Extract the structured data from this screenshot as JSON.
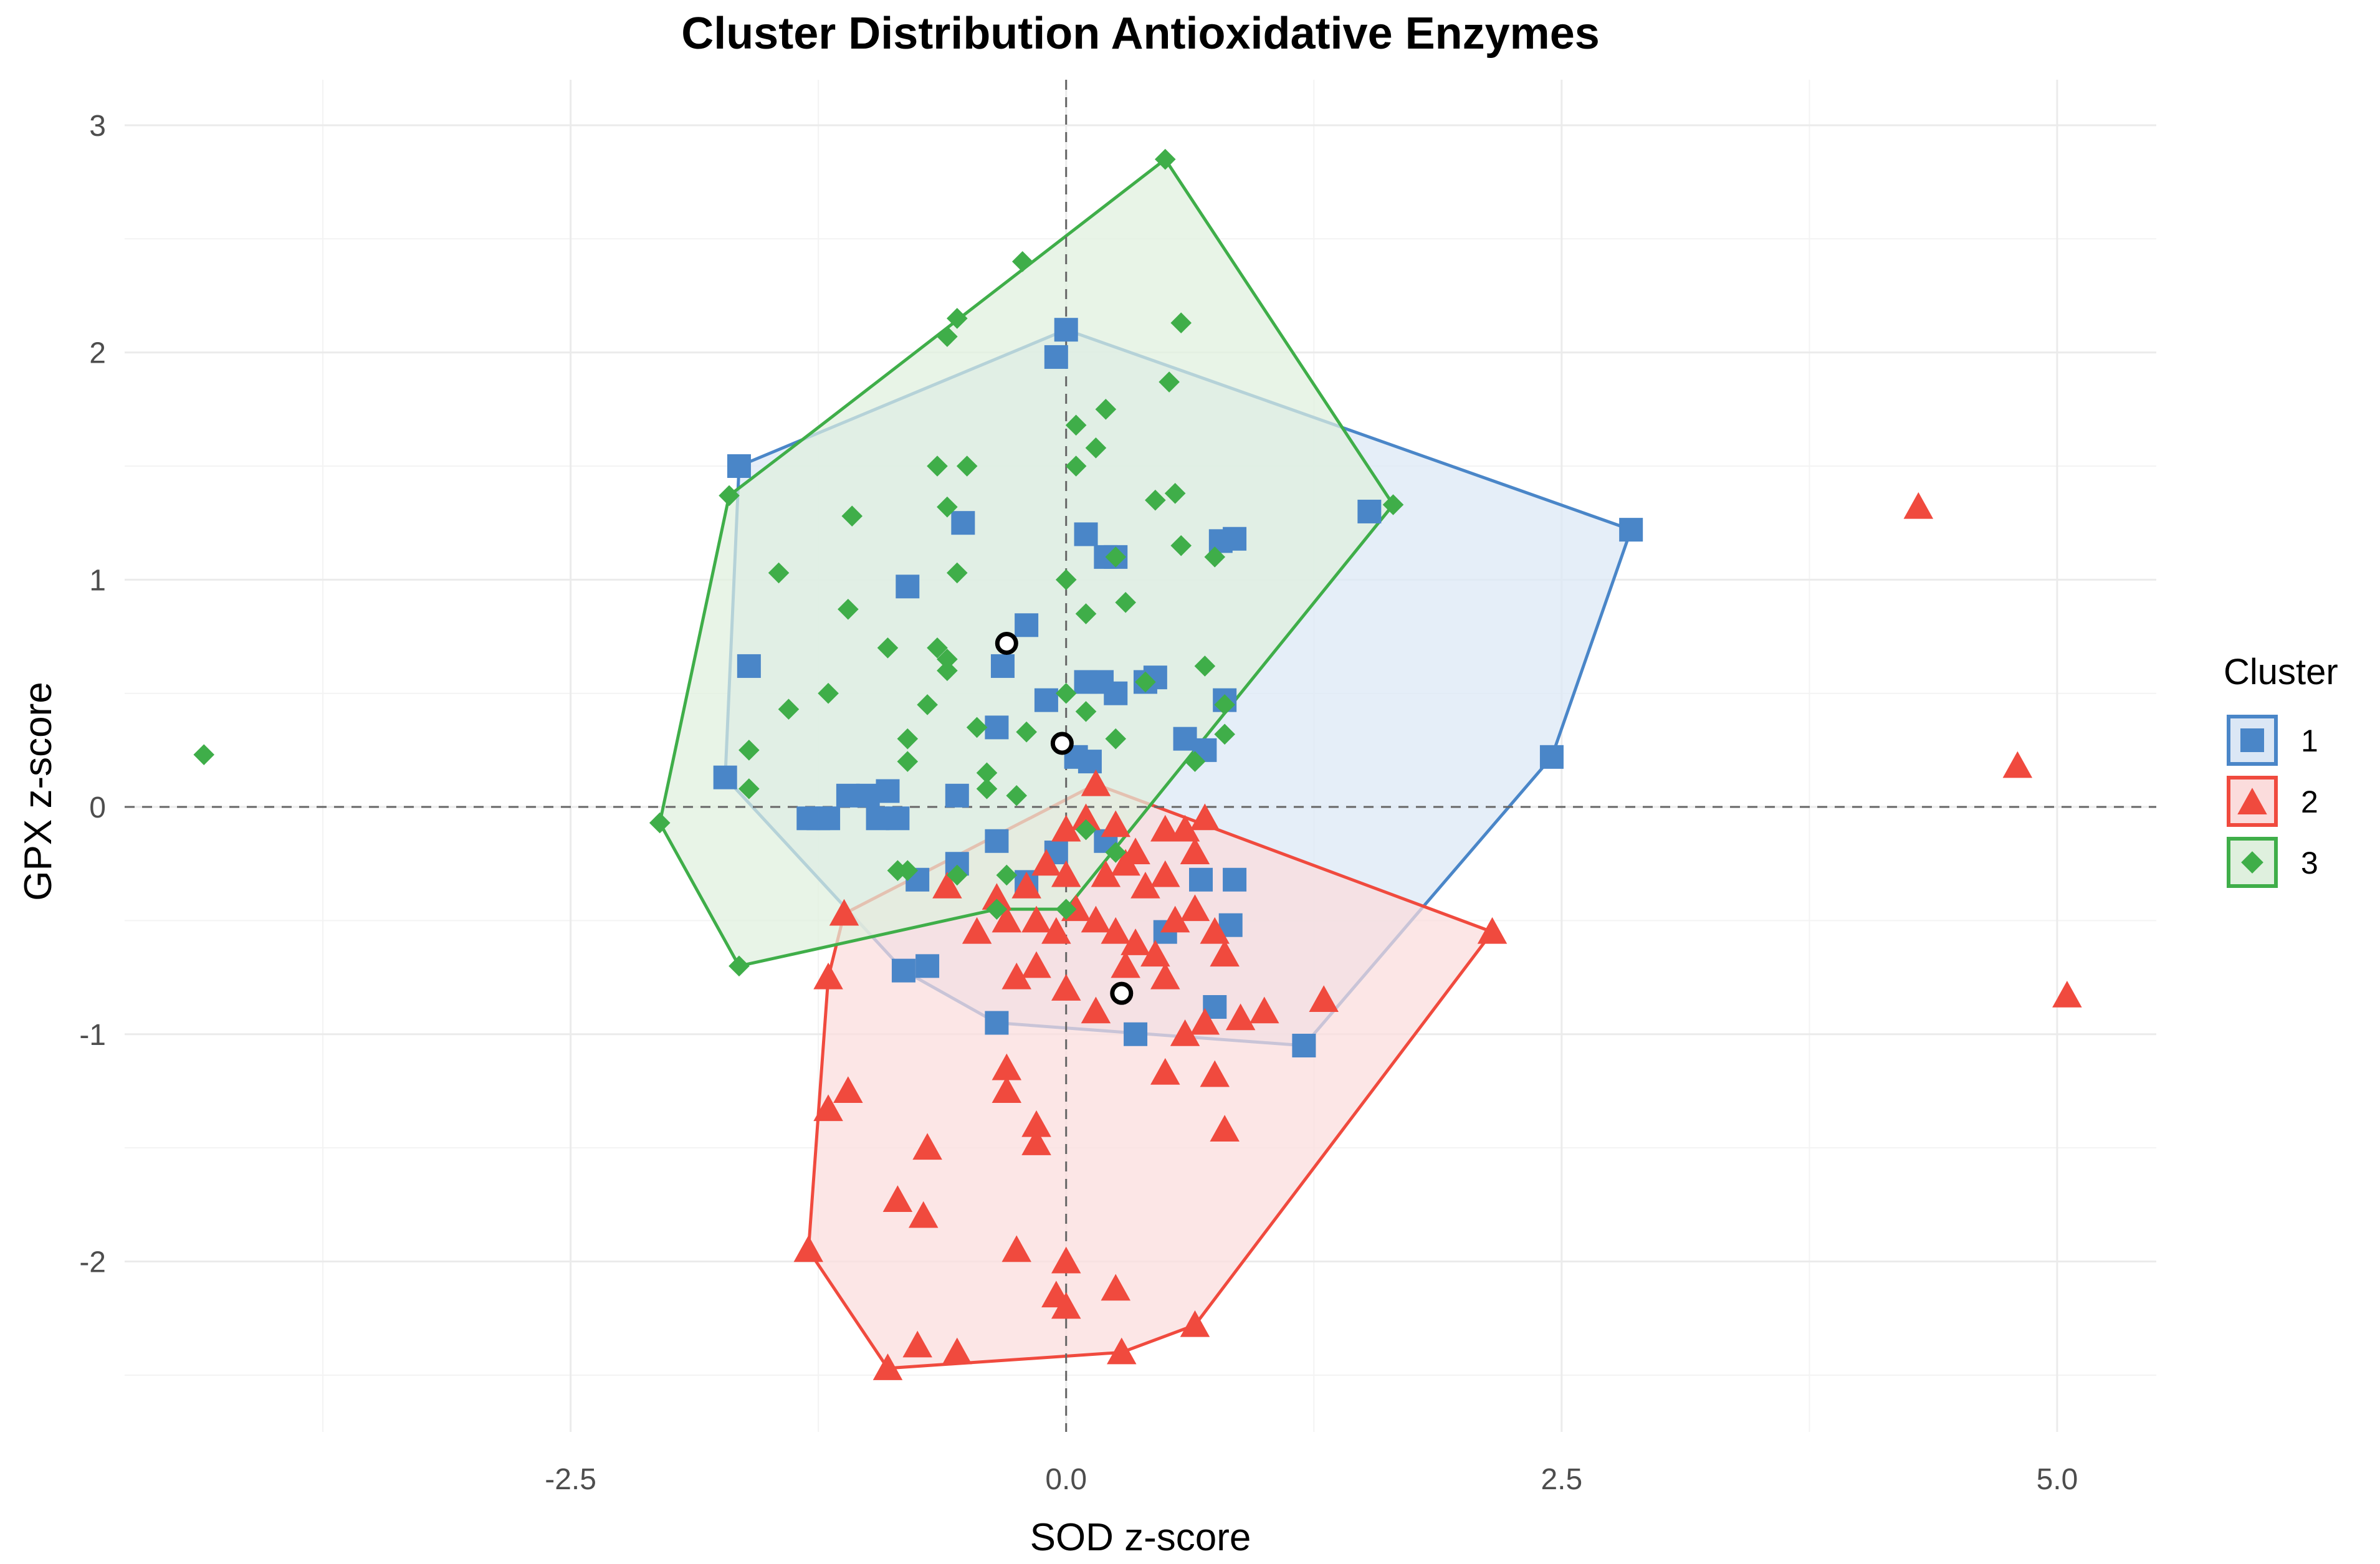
{
  "chart_data": {
    "type": "scatter",
    "title": "Cluster Distribution Antioxidative Enzymes",
    "xlabel": "SOD z-score",
    "ylabel": "GPX z-score",
    "xlim": [
      -4.75,
      5.5
    ],
    "ylim": [
      -2.75,
      3.2
    ],
    "xticks": [
      -2.5,
      0.0,
      2.5,
      5.0
    ],
    "xtick_labels": [
      "-2.5",
      "0.0",
      "2.5",
      "5.0"
    ],
    "yticks": [
      -2,
      -1,
      0,
      1,
      2,
      3
    ],
    "ytick_labels": [
      "-2",
      "-1",
      "0",
      "1",
      "2",
      "3"
    ],
    "grid": true,
    "reference_lines": {
      "x": 0,
      "y": 0,
      "style": "dashed"
    },
    "legend": {
      "title": "Cluster",
      "position": "right",
      "entries": [
        {
          "label": "1",
          "color": "#4a86c8",
          "fill": "#dbe7f5",
          "marker": "square"
        },
        {
          "label": "2",
          "color": "#f04a3e",
          "fill": "#fbdcdc",
          "marker": "triangle"
        },
        {
          "label": "3",
          "color": "#3fae49",
          "fill": "#dff0de",
          "marker": "diamond"
        }
      ]
    },
    "series": [
      {
        "name": "1",
        "marker": "square",
        "color": "#4a86c8",
        "hull": [
          [
            -1.65,
            1.5
          ],
          [
            0.0,
            2.1
          ],
          [
            2.85,
            1.22
          ],
          [
            2.45,
            0.22
          ],
          [
            1.2,
            -1.05
          ],
          [
            -0.35,
            -0.95
          ],
          [
            -0.82,
            -0.72
          ],
          [
            -1.72,
            0.13
          ]
        ],
        "points": [
          [
            -1.65,
            1.5
          ],
          [
            0.0,
            2.1
          ],
          [
            -0.05,
            1.98
          ],
          [
            2.85,
            1.22
          ],
          [
            1.53,
            1.3
          ],
          [
            2.45,
            0.22
          ],
          [
            1.2,
            -1.05
          ],
          [
            -0.35,
            -0.95
          ],
          [
            -0.82,
            -0.72
          ],
          [
            -1.72,
            0.13
          ],
          [
            -1.6,
            0.62
          ],
          [
            -0.52,
            1.25
          ],
          [
            -0.8,
            0.97
          ],
          [
            0.1,
            1.2
          ],
          [
            0.2,
            1.1
          ],
          [
            0.25,
            1.1
          ],
          [
            0.78,
            1.17
          ],
          [
            0.85,
            1.18
          ],
          [
            -0.2,
            0.8
          ],
          [
            -0.32,
            0.62
          ],
          [
            0.1,
            0.55
          ],
          [
            0.18,
            0.55
          ],
          [
            0.25,
            0.5
          ],
          [
            0.4,
            0.55
          ],
          [
            0.45,
            0.57
          ],
          [
            -0.1,
            0.47
          ],
          [
            -0.35,
            0.35
          ],
          [
            0.8,
            0.47
          ],
          [
            0.6,
            0.3
          ],
          [
            0.7,
            0.25
          ],
          [
            0.05,
            0.22
          ],
          [
            -1.3,
            -0.05
          ],
          [
            -1.25,
            -0.05
          ],
          [
            -1.2,
            -0.05
          ],
          [
            -1.1,
            0.05
          ],
          [
            -1.0,
            0.05
          ],
          [
            -0.95,
            -0.05
          ],
          [
            -0.9,
            0.07
          ],
          [
            -0.85,
            -0.05
          ],
          [
            -0.75,
            -0.32
          ],
          [
            -0.55,
            0.05
          ],
          [
            -0.55,
            -0.25
          ],
          [
            -0.35,
            -0.15
          ],
          [
            -0.2,
            -0.33
          ],
          [
            -0.05,
            -0.2
          ],
          [
            0.12,
            0.2
          ],
          [
            -0.7,
            -0.7
          ],
          [
            0.5,
            -0.55
          ],
          [
            0.68,
            -0.32
          ],
          [
            0.85,
            -0.32
          ],
          [
            0.83,
            -0.52
          ],
          [
            0.75,
            -0.88
          ],
          [
            0.35,
            -1.0
          ],
          [
            0.2,
            -0.15
          ]
        ]
      },
      {
        "name": "2",
        "marker": "triangle",
        "color": "#f04a3e",
        "hull": [
          [
            0.15,
            0.1
          ],
          [
            2.15,
            -0.55
          ],
          [
            0.65,
            -2.28
          ],
          [
            0.28,
            -2.4
          ],
          [
            -0.9,
            -2.47
          ],
          [
            -1.3,
            -1.95
          ],
          [
            -1.2,
            -0.75
          ],
          [
            -1.12,
            -0.47
          ]
        ],
        "points": [
          [
            4.3,
            1.32
          ],
          [
            4.8,
            0.18
          ],
          [
            5.05,
            -0.83
          ],
          [
            2.15,
            -0.55
          ],
          [
            0.15,
            0.1
          ],
          [
            0.25,
            -0.08
          ],
          [
            0.35,
            -0.2
          ],
          [
            0.5,
            -0.1
          ],
          [
            0.6,
            -0.1
          ],
          [
            0.65,
            -0.2
          ],
          [
            0.7,
            -0.05
          ],
          [
            0.5,
            -0.3
          ],
          [
            0.4,
            -0.35
          ],
          [
            0.3,
            -0.25
          ],
          [
            0.2,
            -0.3
          ],
          [
            0.1,
            -0.05
          ],
          [
            0.0,
            -0.1
          ],
          [
            -0.1,
            -0.25
          ],
          [
            -0.2,
            -0.35
          ],
          [
            -0.3,
            -0.5
          ],
          [
            -0.35,
            -0.4
          ],
          [
            -0.15,
            -0.5
          ],
          [
            -0.05,
            -0.55
          ],
          [
            0.05,
            -0.45
          ],
          [
            0.15,
            -0.5
          ],
          [
            0.25,
            -0.55
          ],
          [
            0.35,
            -0.6
          ],
          [
            0.45,
            -0.65
          ],
          [
            0.55,
            -0.5
          ],
          [
            0.65,
            -0.45
          ],
          [
            0.75,
            -0.55
          ],
          [
            0.8,
            -0.65
          ],
          [
            1.0,
            -0.9
          ],
          [
            1.3,
            -0.85
          ],
          [
            0.7,
            -0.95
          ],
          [
            0.6,
            -1.0
          ],
          [
            0.5,
            -0.75
          ],
          [
            0.3,
            -0.7
          ],
          [
            0.15,
            -0.9
          ],
          [
            0.0,
            -0.8
          ],
          [
            -0.15,
            -0.7
          ],
          [
            -0.25,
            -0.75
          ],
          [
            -0.3,
            -1.15
          ],
          [
            -0.3,
            -1.25
          ],
          [
            -0.15,
            -1.4
          ],
          [
            -0.15,
            -1.48
          ],
          [
            -0.7,
            -1.5
          ],
          [
            -1.1,
            -1.25
          ],
          [
            -1.2,
            -1.33
          ],
          [
            -1.2,
            -0.75
          ],
          [
            -1.12,
            -0.47
          ],
          [
            -0.85,
            -1.73
          ],
          [
            -0.72,
            -1.8
          ],
          [
            -1.3,
            -1.95
          ],
          [
            -0.25,
            -1.95
          ],
          [
            0.25,
            -2.12
          ],
          [
            -0.05,
            -2.15
          ],
          [
            0.0,
            -2.2
          ],
          [
            -0.9,
            -2.47
          ],
          [
            -0.75,
            -2.37
          ],
          [
            -0.55,
            -2.4
          ],
          [
            0.28,
            -2.4
          ],
          [
            0.65,
            -2.28
          ],
          [
            0.5,
            -1.17
          ],
          [
            0.75,
            -1.18
          ],
          [
            0.8,
            -1.42
          ],
          [
            0.88,
            -0.93
          ],
          [
            0.0,
            -2.0
          ],
          [
            -0.6,
            -0.35
          ],
          [
            -0.45,
            -0.55
          ],
          [
            0.0,
            -0.3
          ]
        ]
      },
      {
        "name": "3",
        "marker": "diamond",
        "color": "#3fae49",
        "hull": [
          [
            0.5,
            2.85
          ],
          [
            1.65,
            1.33
          ],
          [
            0.0,
            -0.45
          ],
          [
            -0.35,
            -0.45
          ],
          [
            -1.65,
            -0.7
          ],
          [
            -2.05,
            -0.07
          ],
          [
            -1.7,
            1.37
          ],
          [
            -1.28,
            1.65
          ]
        ],
        "points": [
          [
            -4.35,
            0.23
          ],
          [
            0.5,
            2.85
          ],
          [
            -0.22,
            2.4
          ],
          [
            0.58,
            2.13
          ],
          [
            -0.55,
            2.15
          ],
          [
            -0.6,
            2.07
          ],
          [
            0.52,
            1.87
          ],
          [
            0.2,
            1.75
          ],
          [
            0.05,
            1.68
          ],
          [
            0.15,
            1.58
          ],
          [
            0.05,
            1.5
          ],
          [
            -0.65,
            1.5
          ],
          [
            -0.5,
            1.5
          ],
          [
            0.45,
            1.35
          ],
          [
            0.55,
            1.38
          ],
          [
            -1.7,
            1.37
          ],
          [
            -0.6,
            1.32
          ],
          [
            1.65,
            1.33
          ],
          [
            -1.08,
            1.28
          ],
          [
            0.25,
            1.1
          ],
          [
            0.58,
            1.15
          ],
          [
            0.75,
            1.1
          ],
          [
            -0.55,
            1.03
          ],
          [
            -1.45,
            1.03
          ],
          [
            0.0,
            1.0
          ],
          [
            0.3,
            0.9
          ],
          [
            0.1,
            0.85
          ],
          [
            -1.1,
            0.87
          ],
          [
            -0.65,
            0.7
          ],
          [
            -0.9,
            0.7
          ],
          [
            -0.6,
            0.65
          ],
          [
            -0.6,
            0.6
          ],
          [
            0.7,
            0.62
          ],
          [
            0.4,
            0.55
          ],
          [
            -1.2,
            0.5
          ],
          [
            0.0,
            0.5
          ],
          [
            0.1,
            0.42
          ],
          [
            -1.4,
            0.43
          ],
          [
            0.8,
            0.45
          ],
          [
            -0.7,
            0.45
          ],
          [
            -0.45,
            0.35
          ],
          [
            -0.2,
            0.33
          ],
          [
            0.25,
            0.3
          ],
          [
            0.8,
            0.32
          ],
          [
            -0.8,
            0.3
          ],
          [
            0.65,
            0.2
          ],
          [
            -0.8,
            0.2
          ],
          [
            -0.4,
            0.15
          ],
          [
            -0.4,
            0.08
          ],
          [
            -1.6,
            0.25
          ],
          [
            -1.6,
            0.08
          ],
          [
            -2.05,
            -0.07
          ],
          [
            -1.65,
            -0.7
          ],
          [
            -0.35,
            -0.45
          ],
          [
            -0.85,
            -0.28
          ],
          [
            -0.8,
            -0.28
          ],
          [
            -0.55,
            -0.3
          ],
          [
            -0.3,
            -0.3
          ],
          [
            0.25,
            -0.2
          ],
          [
            0.0,
            -0.45
          ],
          [
            -0.25,
            0.05
          ],
          [
            0.1,
            -0.1
          ]
        ]
      }
    ],
    "centroids": [
      [
        -0.3,
        0.72
      ],
      [
        -0.02,
        0.28
      ],
      [
        0.28,
        -0.82
      ]
    ]
  }
}
